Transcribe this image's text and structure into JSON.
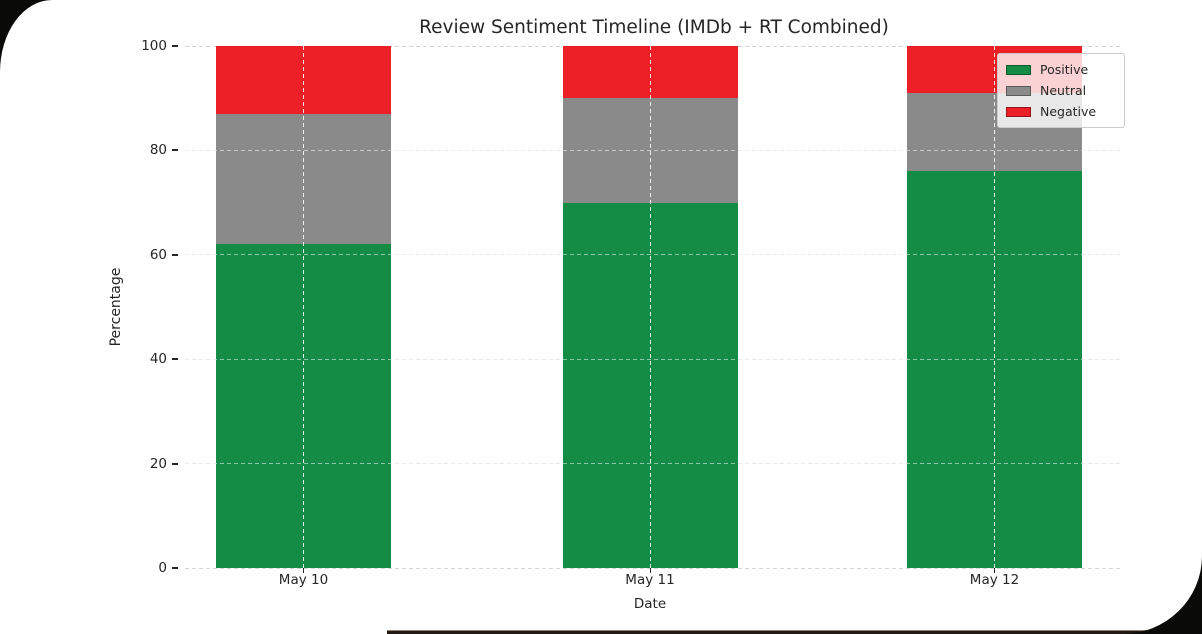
{
  "window": {
    "background": "#ffffff",
    "surround_color": "#0a0a08"
  },
  "chart_data": {
    "type": "bar",
    "stacked": true,
    "title": "Review Sentiment Timeline (IMDb + RT Combined)",
    "xlabel": "Date",
    "ylabel": "Percentage",
    "categories": [
      "May 10",
      "May 11",
      "May 12"
    ],
    "series": [
      {
        "name": "Positive",
        "color": "#148c46",
        "values": [
          62,
          70,
          76
        ]
      },
      {
        "name": "Neutral",
        "color": "#8a8a8a",
        "values": [
          25,
          20,
          15
        ]
      },
      {
        "name": "Negative",
        "color": "#ec2026",
        "values": [
          13,
          10,
          9
        ]
      }
    ],
    "ylim": [
      0,
      100
    ],
    "yticks_desc": [
      "100",
      "80",
      "60",
      "40",
      "20",
      "0"
    ],
    "grid": true,
    "grid_style": "dashed",
    "legend_position": "upper right"
  }
}
